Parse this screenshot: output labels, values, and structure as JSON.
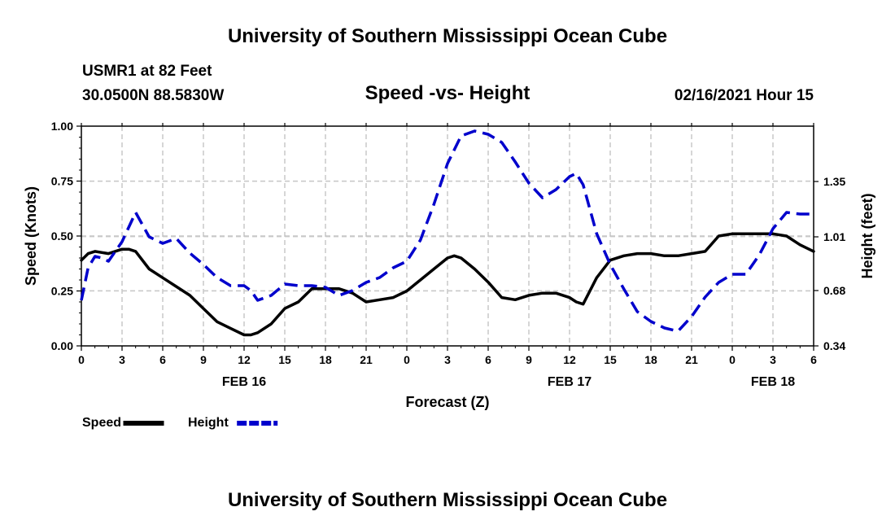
{
  "header": {
    "title_top": "University of Southern Mississippi Ocean Cube",
    "station": "USMR1 at 82 Feet",
    "coords": "30.0500N 88.5830W",
    "plot_title": "Speed -vs- Height",
    "datetime": "02/16/2021 Hour 15"
  },
  "footer": {
    "title_bottom": "University of Southern Mississippi Ocean Cube"
  },
  "chart_data": {
    "type": "line",
    "title": "Speed -vs- Height",
    "xlabel": "Forecast (Z)",
    "ylabel": "Speed (Knots)",
    "y2label": "Height (feet)",
    "x_range_hours": [
      0,
      54
    ],
    "ylim": [
      0,
      1.0
    ],
    "y2lim": [
      0.34,
      1.69
    ],
    "x_tick_labels": [
      "0",
      "3",
      "6",
      "9",
      "12",
      "15",
      "18",
      "21",
      "0",
      "3",
      "6",
      "9",
      "12",
      "15",
      "18",
      "21",
      "0",
      "3",
      "6"
    ],
    "x_tick_hours": [
      0,
      3,
      6,
      9,
      12,
      15,
      18,
      21,
      24,
      27,
      30,
      33,
      36,
      39,
      42,
      45,
      48,
      51,
      54
    ],
    "date_labels": [
      {
        "label": "FEB 16",
        "hour": 12
      },
      {
        "label": "FEB 17",
        "hour": 36
      },
      {
        "label": "FEB 18",
        "hour": 51
      }
    ],
    "y_ticks": [
      "0.00",
      "0.25",
      "0.50",
      "0.75",
      "1.00"
    ],
    "y_tick_values": [
      0,
      0.25,
      0.5,
      0.75,
      1.0
    ],
    "y2_ticks": [
      "0.34",
      "0.68",
      "1.01",
      "1.35"
    ],
    "y2_tick_values": [
      0.34,
      0.68,
      1.01,
      1.35
    ],
    "series": [
      {
        "name": "Speed",
        "color": "#000000",
        "axis": "left",
        "style": "solid",
        "x": [
          0,
          0.5,
          1,
          2,
          3,
          3.5,
          4,
          5,
          6,
          7,
          8,
          9,
          10,
          11,
          12,
          12.5,
          13,
          14,
          15,
          16,
          17,
          18,
          19,
          20,
          21,
          22,
          23,
          24,
          25,
          26,
          27,
          27.5,
          28,
          29,
          30,
          31,
          32,
          33,
          34,
          35,
          36,
          36.5,
          37,
          38,
          39,
          40,
          41,
          42,
          43,
          44,
          45,
          46,
          47,
          48,
          49,
          50,
          51,
          52,
          53,
          54
        ],
        "values": [
          0.39,
          0.42,
          0.43,
          0.42,
          0.44,
          0.44,
          0.43,
          0.35,
          0.31,
          0.27,
          0.23,
          0.17,
          0.11,
          0.08,
          0.05,
          0.05,
          0.06,
          0.1,
          0.17,
          0.2,
          0.26,
          0.26,
          0.26,
          0.24,
          0.2,
          0.21,
          0.22,
          0.25,
          0.3,
          0.35,
          0.4,
          0.41,
          0.4,
          0.35,
          0.29,
          0.22,
          0.21,
          0.23,
          0.24,
          0.24,
          0.22,
          0.2,
          0.19,
          0.31,
          0.39,
          0.41,
          0.42,
          0.42,
          0.41,
          0.41,
          0.42,
          0.43,
          0.5,
          0.51,
          0.51,
          0.51,
          0.51,
          0.5,
          0.46,
          0.43
        ]
      },
      {
        "name": "Height",
        "color": "#0000cc",
        "axis": "right",
        "style": "dashed",
        "x": [
          0,
          0.5,
          1,
          1.5,
          2,
          3,
          4,
          5,
          6,
          7,
          8,
          9,
          10,
          11,
          12,
          12.5,
          13,
          14,
          15,
          16,
          17,
          18,
          19,
          20,
          21,
          22,
          23,
          24,
          25,
          26,
          27,
          28,
          29,
          30,
          31,
          32,
          33,
          34,
          35,
          36,
          36.5,
          37,
          38,
          39,
          40,
          41,
          42,
          43,
          44,
          45,
          46,
          47,
          48,
          49,
          50,
          51,
          52,
          53,
          54
        ],
        "values": [
          0.62,
          0.82,
          0.89,
          0.88,
          0.86,
          0.98,
          1.16,
          1.01,
          0.97,
          1.0,
          0.91,
          0.84,
          0.76,
          0.71,
          0.71,
          0.68,
          0.62,
          0.65,
          0.72,
          0.71,
          0.71,
          0.7,
          0.65,
          0.68,
          0.73,
          0.76,
          0.82,
          0.86,
          0.99,
          1.21,
          1.46,
          1.63,
          1.66,
          1.64,
          1.59,
          1.47,
          1.34,
          1.25,
          1.3,
          1.38,
          1.4,
          1.33,
          1.03,
          0.84,
          0.69,
          0.55,
          0.49,
          0.45,
          0.43,
          0.52,
          0.64,
          0.73,
          0.78,
          0.78,
          0.9,
          1.06,
          1.16,
          1.15,
          1.15
        ]
      }
    ],
    "legend": [
      {
        "label": "Speed",
        "color": "#000000",
        "style": "solid"
      },
      {
        "label": "Height",
        "color": "#0000cc",
        "style": "dashed"
      }
    ]
  }
}
